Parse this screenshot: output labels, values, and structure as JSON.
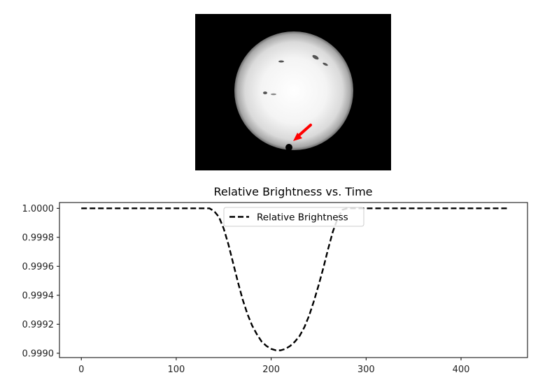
{
  "image": {
    "subject": "sun-disk-with-transiting-planet",
    "arrow_color": "#ff0000",
    "planet_color": "#000000"
  },
  "chart_data": {
    "type": "line",
    "title": "Relative Brightness vs. Time",
    "xlabel": "",
    "ylabel": "",
    "xlim": [
      -23,
      470
    ],
    "ylim": [
      0.99897,
      1.00004
    ],
    "x_ticks": [
      0,
      100,
      200,
      300,
      400
    ],
    "y_ticks": [
      0.999,
      0.9992,
      0.9994,
      0.9996,
      0.9998,
      1.0
    ],
    "y_tick_labels": [
      "0.9990",
      "0.9992",
      "0.9994",
      "0.9996",
      "0.9998",
      "1.0000"
    ],
    "legend": {
      "location": "upper center"
    },
    "series": [
      {
        "name": "Relative Brightness",
        "color": "#000000",
        "linestyle": "dashed",
        "x": [
          0,
          20,
          40,
          60,
          80,
          100,
          120,
          135,
          140,
          145,
          150,
          155,
          160,
          165,
          170,
          175,
          180,
          185,
          190,
          195,
          200,
          205,
          210,
          215,
          220,
          225,
          230,
          235,
          240,
          245,
          250,
          255,
          260,
          265,
          270,
          275,
          280,
          285,
          290,
          300,
          320,
          340,
          360,
          380,
          400,
          420,
          450
        ],
        "y": [
          1.0,
          1.0,
          1.0,
          1.0,
          1.0,
          1.0,
          1.0,
          1.0,
          0.99998,
          0.99994,
          0.99986,
          0.99975,
          0.99962,
          0.99949,
          0.99937,
          0.99927,
          0.99919,
          0.99913,
          0.99908,
          0.99905,
          0.99903,
          0.99902,
          0.99902,
          0.99903,
          0.99905,
          0.99908,
          0.99912,
          0.99918,
          0.99926,
          0.99936,
          0.99947,
          0.99959,
          0.99972,
          0.99984,
          0.99993,
          0.99999,
          1.0,
          1.0,
          1.0,
          1.0,
          1.0,
          1.0,
          1.0,
          1.0,
          1.0,
          1.0,
          1.0
        ]
      }
    ]
  }
}
